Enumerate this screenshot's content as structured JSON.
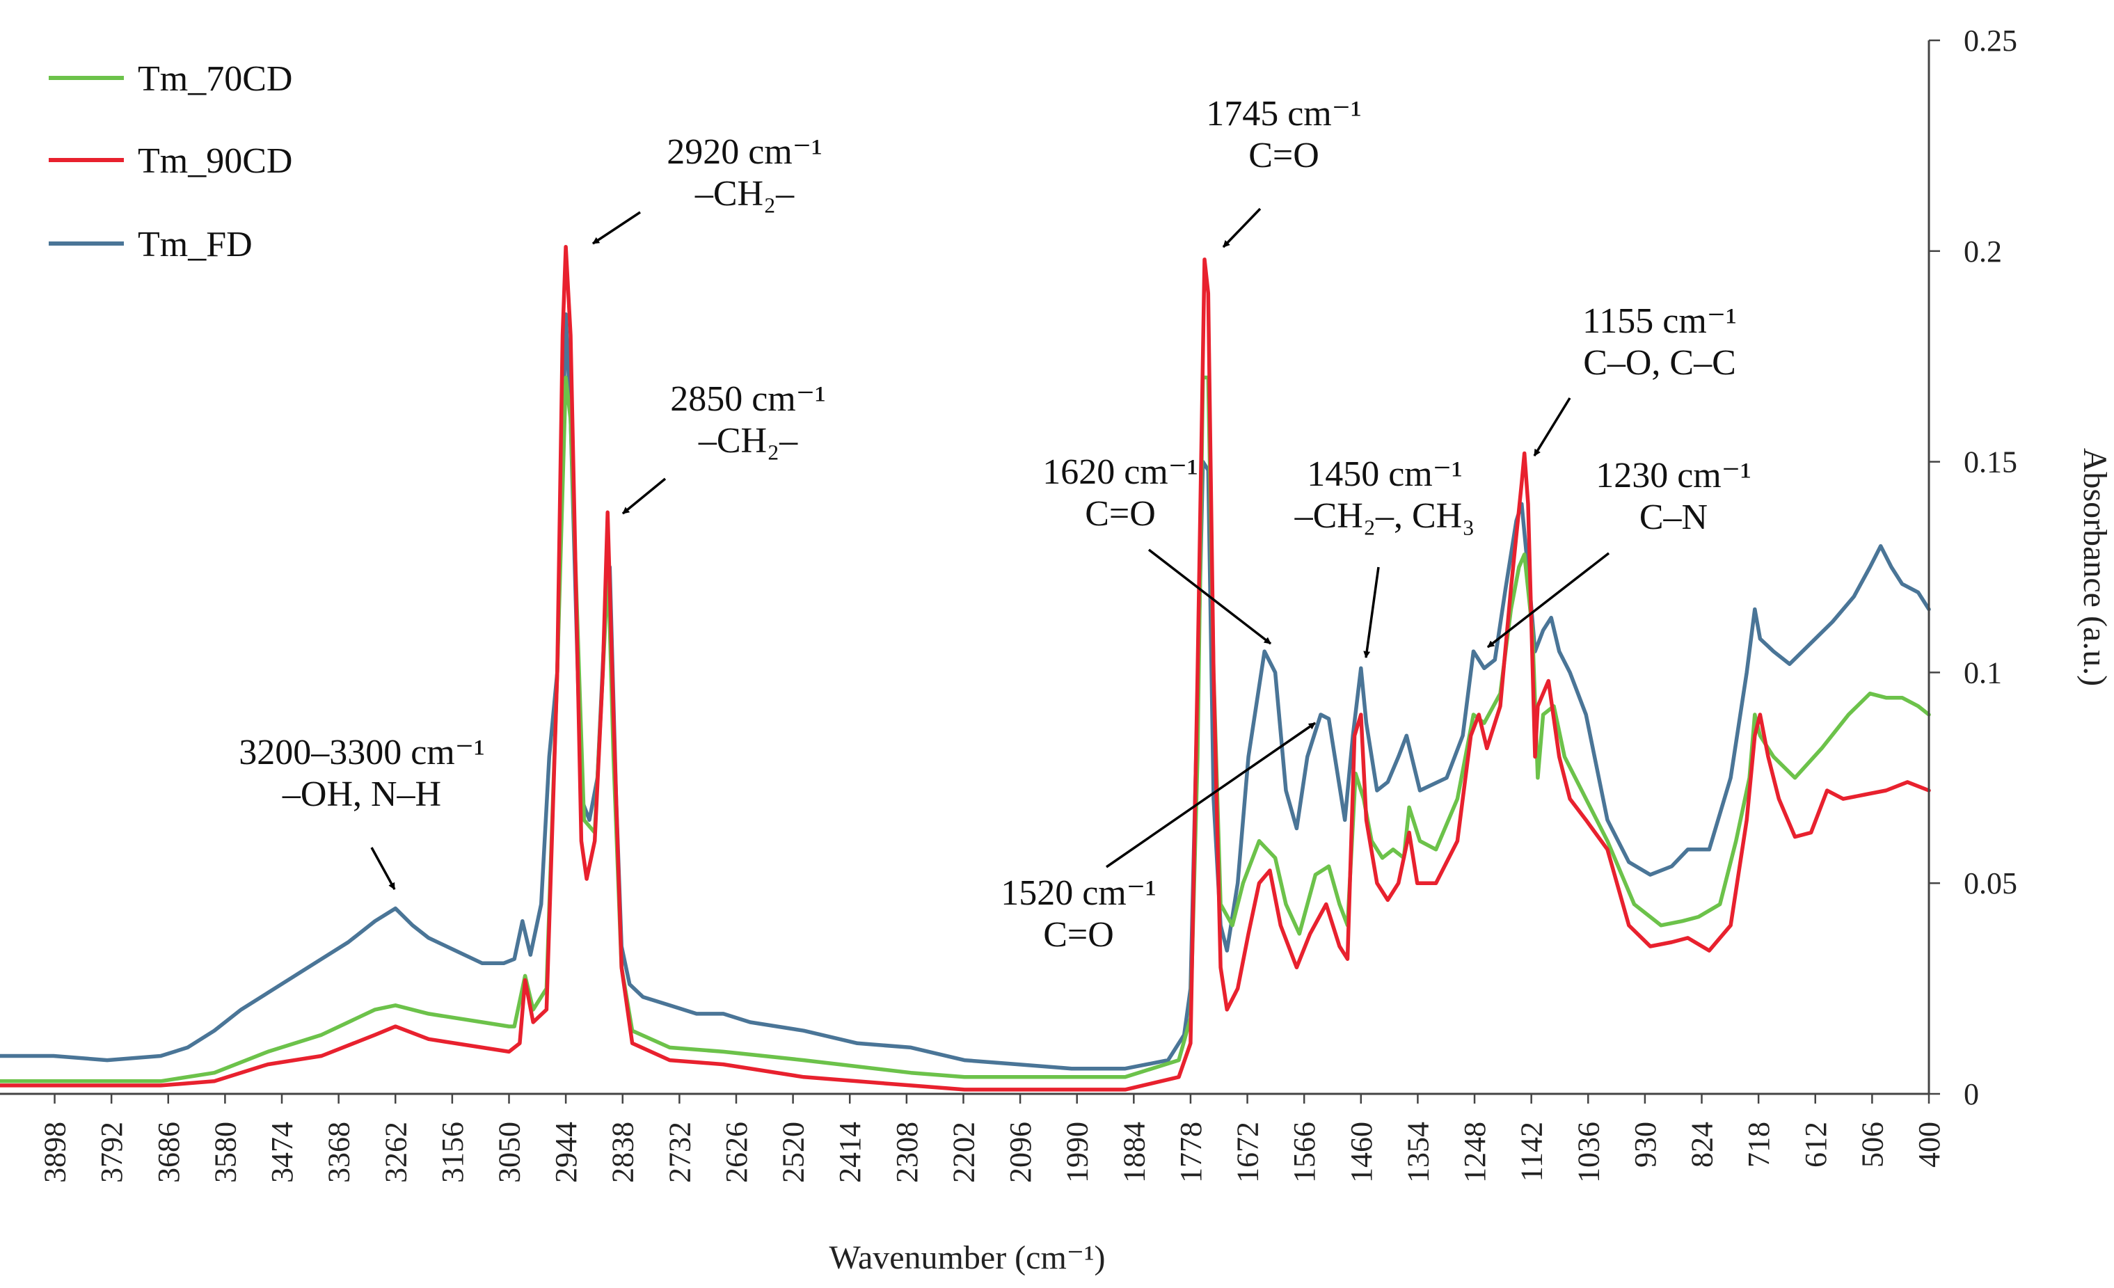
{
  "chart_data": {
    "type": "line",
    "title": "",
    "xlabel": "Wavenumber (cm⁻¹)",
    "ylabel": "Absorbance (a.u.)",
    "x_reversed": true,
    "xlim": [
      4000,
      400
    ],
    "ylim": [
      0,
      0.25
    ],
    "x_ticks": [
      "3898",
      "3792",
      "3686",
      "3580",
      "3474",
      "3368",
      "3262",
      "3156",
      "3050",
      "2944",
      "2838",
      "2732",
      "2626",
      "2520",
      "2414",
      "2308",
      "2202",
      "2096",
      "1990",
      "1884",
      "1778",
      "1672",
      "1566",
      "1460",
      "1354",
      "1248",
      "1142",
      "1036",
      "930",
      "824",
      "718",
      "612",
      "506",
      "400"
    ],
    "y_ticks": [
      "0",
      "0.05",
      "0.1",
      "0.15",
      "0.2",
      "0.25"
    ],
    "legend_position": "top-left",
    "series": [
      {
        "name": "Tm_70CD",
        "color": "#6cc24a",
        "points": [
          [
            4000,
            0.003
          ],
          [
            3700,
            0.003
          ],
          [
            3600,
            0.005
          ],
          [
            3500,
            0.01
          ],
          [
            3400,
            0.014
          ],
          [
            3300,
            0.02
          ],
          [
            3262,
            0.021
          ],
          [
            3200,
            0.019
          ],
          [
            3100,
            0.017
          ],
          [
            3050,
            0.016
          ],
          [
            3040,
            0.016
          ],
          [
            3020,
            0.028
          ],
          [
            3005,
            0.02
          ],
          [
            2980,
            0.025
          ],
          [
            2960,
            0.1
          ],
          [
            2944,
            0.17
          ],
          [
            2935,
            0.16
          ],
          [
            2910,
            0.065
          ],
          [
            2890,
            0.062
          ],
          [
            2875,
            0.1
          ],
          [
            2865,
            0.125
          ],
          [
            2855,
            0.08
          ],
          [
            2840,
            0.03
          ],
          [
            2820,
            0.015
          ],
          [
            2750,
            0.011
          ],
          [
            2650,
            0.01
          ],
          [
            2500,
            0.008
          ],
          [
            2300,
            0.005
          ],
          [
            2200,
            0.004
          ],
          [
            1900,
            0.004
          ],
          [
            1800,
            0.008
          ],
          [
            1778,
            0.018
          ],
          [
            1765,
            0.08
          ],
          [
            1755,
            0.17
          ],
          [
            1745,
            0.17
          ],
          [
            1735,
            0.1
          ],
          [
            1722,
            0.045
          ],
          [
            1700,
            0.04
          ],
          [
            1680,
            0.05
          ],
          [
            1650,
            0.06
          ],
          [
            1620,
            0.056
          ],
          [
            1600,
            0.045
          ],
          [
            1575,
            0.038
          ],
          [
            1545,
            0.052
          ],
          [
            1520,
            0.054
          ],
          [
            1500,
            0.045
          ],
          [
            1485,
            0.04
          ],
          [
            1470,
            0.076
          ],
          [
            1455,
            0.07
          ],
          [
            1440,
            0.06
          ],
          [
            1420,
            0.056
          ],
          [
            1400,
            0.058
          ],
          [
            1380,
            0.056
          ],
          [
            1370,
            0.068
          ],
          [
            1350,
            0.06
          ],
          [
            1320,
            0.058
          ],
          [
            1280,
            0.07
          ],
          [
            1250,
            0.09
          ],
          [
            1230,
            0.088
          ],
          [
            1200,
            0.095
          ],
          [
            1180,
            0.115
          ],
          [
            1165,
            0.125
          ],
          [
            1155,
            0.128
          ],
          [
            1140,
            0.11
          ],
          [
            1130,
            0.075
          ],
          [
            1120,
            0.09
          ],
          [
            1100,
            0.092
          ],
          [
            1080,
            0.08
          ],
          [
            1060,
            0.075
          ],
          [
            1040,
            0.07
          ],
          [
            1000,
            0.06
          ],
          [
            950,
            0.045
          ],
          [
            900,
            0.04
          ],
          [
            860,
            0.041
          ],
          [
            830,
            0.042
          ],
          [
            790,
            0.045
          ],
          [
            760,
            0.06
          ],
          [
            735,
            0.075
          ],
          [
            725,
            0.09
          ],
          [
            715,
            0.085
          ],
          [
            690,
            0.08
          ],
          [
            650,
            0.075
          ],
          [
            600,
            0.082
          ],
          [
            550,
            0.09
          ],
          [
            510,
            0.095
          ],
          [
            480,
            0.094
          ],
          [
            450,
            0.094
          ],
          [
            420,
            0.092
          ],
          [
            400,
            0.09
          ]
        ]
      },
      {
        "name": "Tm_90CD",
        "color": "#e8212e",
        "points": [
          [
            4000,
            0.002
          ],
          [
            3700,
            0.002
          ],
          [
            3600,
            0.003
          ],
          [
            3500,
            0.007
          ],
          [
            3400,
            0.009
          ],
          [
            3300,
            0.014
          ],
          [
            3262,
            0.016
          ],
          [
            3200,
            0.013
          ],
          [
            3100,
            0.011
          ],
          [
            3050,
            0.01
          ],
          [
            3030,
            0.012
          ],
          [
            3020,
            0.027
          ],
          [
            3005,
            0.017
          ],
          [
            2980,
            0.02
          ],
          [
            2960,
            0.1
          ],
          [
            2950,
            0.18
          ],
          [
            2944,
            0.201
          ],
          [
            2935,
            0.18
          ],
          [
            2915,
            0.06
          ],
          [
            2905,
            0.051
          ],
          [
            2890,
            0.06
          ],
          [
            2875,
            0.1
          ],
          [
            2866,
            0.138
          ],
          [
            2855,
            0.09
          ],
          [
            2840,
            0.03
          ],
          [
            2820,
            0.012
          ],
          [
            2750,
            0.008
          ],
          [
            2650,
            0.007
          ],
          [
            2500,
            0.004
          ],
          [
            2300,
            0.002
          ],
          [
            2200,
            0.001
          ],
          [
            1900,
            0.001
          ],
          [
            1800,
            0.004
          ],
          [
            1778,
            0.012
          ],
          [
            1765,
            0.1
          ],
          [
            1752,
            0.198
          ],
          [
            1745,
            0.19
          ],
          [
            1735,
            0.1
          ],
          [
            1722,
            0.03
          ],
          [
            1710,
            0.02
          ],
          [
            1690,
            0.025
          ],
          [
            1670,
            0.038
          ],
          [
            1650,
            0.05
          ],
          [
            1630,
            0.053
          ],
          [
            1610,
            0.04
          ],
          [
            1580,
            0.03
          ],
          [
            1555,
            0.038
          ],
          [
            1525,
            0.045
          ],
          [
            1500,
            0.035
          ],
          [
            1485,
            0.032
          ],
          [
            1472,
            0.085
          ],
          [
            1460,
            0.09
          ],
          [
            1450,
            0.065
          ],
          [
            1430,
            0.05
          ],
          [
            1410,
            0.046
          ],
          [
            1390,
            0.05
          ],
          [
            1370,
            0.062
          ],
          [
            1355,
            0.05
          ],
          [
            1320,
            0.05
          ],
          [
            1280,
            0.06
          ],
          [
            1255,
            0.085
          ],
          [
            1240,
            0.09
          ],
          [
            1225,
            0.082
          ],
          [
            1200,
            0.092
          ],
          [
            1180,
            0.12
          ],
          [
            1160,
            0.145
          ],
          [
            1155,
            0.152
          ],
          [
            1148,
            0.14
          ],
          [
            1135,
            0.08
          ],
          [
            1130,
            0.092
          ],
          [
            1110,
            0.098
          ],
          [
            1090,
            0.08
          ],
          [
            1070,
            0.07
          ],
          [
            1040,
            0.065
          ],
          [
            1000,
            0.058
          ],
          [
            960,
            0.04
          ],
          [
            920,
            0.035
          ],
          [
            880,
            0.036
          ],
          [
            850,
            0.037
          ],
          [
            810,
            0.034
          ],
          [
            770,
            0.04
          ],
          [
            740,
            0.065
          ],
          [
            725,
            0.085
          ],
          [
            715,
            0.09
          ],
          [
            700,
            0.08
          ],
          [
            680,
            0.07
          ],
          [
            650,
            0.061
          ],
          [
            620,
            0.062
          ],
          [
            590,
            0.072
          ],
          [
            560,
            0.07
          ],
          [
            520,
            0.071
          ],
          [
            480,
            0.072
          ],
          [
            440,
            0.074
          ],
          [
            400,
            0.072
          ]
        ]
      },
      {
        "name": "Tm_FD",
        "color": "#4a7597",
        "points": [
          [
            4000,
            0.009
          ],
          [
            3900,
            0.009
          ],
          [
            3800,
            0.008
          ],
          [
            3700,
            0.009
          ],
          [
            3650,
            0.011
          ],
          [
            3600,
            0.015
          ],
          [
            3550,
            0.02
          ],
          [
            3500,
            0.024
          ],
          [
            3450,
            0.028
          ],
          [
            3400,
            0.032
          ],
          [
            3350,
            0.036
          ],
          [
            3300,
            0.041
          ],
          [
            3262,
            0.044
          ],
          [
            3230,
            0.04
          ],
          [
            3200,
            0.037
          ],
          [
            3150,
            0.034
          ],
          [
            3100,
            0.031
          ],
          [
            3060,
            0.031
          ],
          [
            3040,
            0.032
          ],
          [
            3025,
            0.041
          ],
          [
            3010,
            0.033
          ],
          [
            2990,
            0.045
          ],
          [
            2975,
            0.08
          ],
          [
            2960,
            0.1
          ],
          [
            2944,
            0.185
          ],
          [
            2935,
            0.16
          ],
          [
            2915,
            0.07
          ],
          [
            2900,
            0.065
          ],
          [
            2885,
            0.075
          ],
          [
            2870,
            0.115
          ],
          [
            2862,
            0.125
          ],
          [
            2850,
            0.07
          ],
          [
            2840,
            0.035
          ],
          [
            2825,
            0.026
          ],
          [
            2800,
            0.023
          ],
          [
            2750,
            0.021
          ],
          [
            2700,
            0.019
          ],
          [
            2650,
            0.019
          ],
          [
            2600,
            0.017
          ],
          [
            2500,
            0.015
          ],
          [
            2400,
            0.012
          ],
          [
            2300,
            0.011
          ],
          [
            2200,
            0.008
          ],
          [
            2100,
            0.007
          ],
          [
            2000,
            0.006
          ],
          [
            1900,
            0.006
          ],
          [
            1820,
            0.008
          ],
          [
            1790,
            0.014
          ],
          [
            1778,
            0.025
          ],
          [
            1765,
            0.095
          ],
          [
            1755,
            0.15
          ],
          [
            1745,
            0.148
          ],
          [
            1735,
            0.07
          ],
          [
            1722,
            0.04
          ],
          [
            1710,
            0.034
          ],
          [
            1690,
            0.05
          ],
          [
            1670,
            0.08
          ],
          [
            1640,
            0.105
          ],
          [
            1620,
            0.1
          ],
          [
            1600,
            0.072
          ],
          [
            1580,
            0.063
          ],
          [
            1560,
            0.08
          ],
          [
            1535,
            0.09
          ],
          [
            1520,
            0.089
          ],
          [
            1500,
            0.073
          ],
          [
            1490,
            0.065
          ],
          [
            1475,
            0.085
          ],
          [
            1460,
            0.101
          ],
          [
            1450,
            0.088
          ],
          [
            1430,
            0.072
          ],
          [
            1410,
            0.074
          ],
          [
            1390,
            0.08
          ],
          [
            1375,
            0.085
          ],
          [
            1350,
            0.072
          ],
          [
            1300,
            0.075
          ],
          [
            1270,
            0.085
          ],
          [
            1250,
            0.105
          ],
          [
            1230,
            0.101
          ],
          [
            1210,
            0.103
          ],
          [
            1190,
            0.12
          ],
          [
            1170,
            0.136
          ],
          [
            1160,
            0.14
          ],
          [
            1145,
            0.12
          ],
          [
            1135,
            0.105
          ],
          [
            1120,
            0.11
          ],
          [
            1105,
            0.113
          ],
          [
            1090,
            0.105
          ],
          [
            1070,
            0.1
          ],
          [
            1040,
            0.09
          ],
          [
            1000,
            0.065
          ],
          [
            960,
            0.055
          ],
          [
            920,
            0.052
          ],
          [
            880,
            0.054
          ],
          [
            850,
            0.058
          ],
          [
            810,
            0.058
          ],
          [
            770,
            0.075
          ],
          [
            740,
            0.1
          ],
          [
            725,
            0.115
          ],
          [
            715,
            0.108
          ],
          [
            690,
            0.105
          ],
          [
            660,
            0.102
          ],
          [
            620,
            0.107
          ],
          [
            580,
            0.112
          ],
          [
            540,
            0.118
          ],
          [
            510,
            0.125
          ],
          [
            490,
            0.13
          ],
          [
            470,
            0.125
          ],
          [
            450,
            0.121
          ],
          [
            420,
            0.119
          ],
          [
            400,
            0.115
          ]
        ]
      }
    ],
    "annotations": [
      {
        "id": "a2920",
        "lines": [
          "2920 cm⁻¹",
          "–CH₂–"
        ]
      },
      {
        "id": "a2850",
        "lines": [
          "2850 cm⁻¹",
          "–CH₂–"
        ]
      },
      {
        "id": "a3200",
        "lines": [
          "3200–3300 cm⁻¹",
          "–OH, N–H"
        ]
      },
      {
        "id": "a1745",
        "lines": [
          "1745 cm⁻¹",
          "C=O"
        ]
      },
      {
        "id": "a1620",
        "lines": [
          "1620 cm⁻¹",
          "C=O"
        ]
      },
      {
        "id": "a1450",
        "lines": [
          "1450 cm⁻¹",
          "–CH₂–, CH₃"
        ]
      },
      {
        "id": "a1155",
        "lines": [
          "1155 cm⁻¹",
          "C–O, C–C"
        ]
      },
      {
        "id": "a1230",
        "lines": [
          "1230 cm⁻¹",
          "C–N"
        ]
      },
      {
        "id": "a1520",
        "lines": [
          "1520 cm⁻¹",
          "C=O"
        ]
      }
    ]
  }
}
